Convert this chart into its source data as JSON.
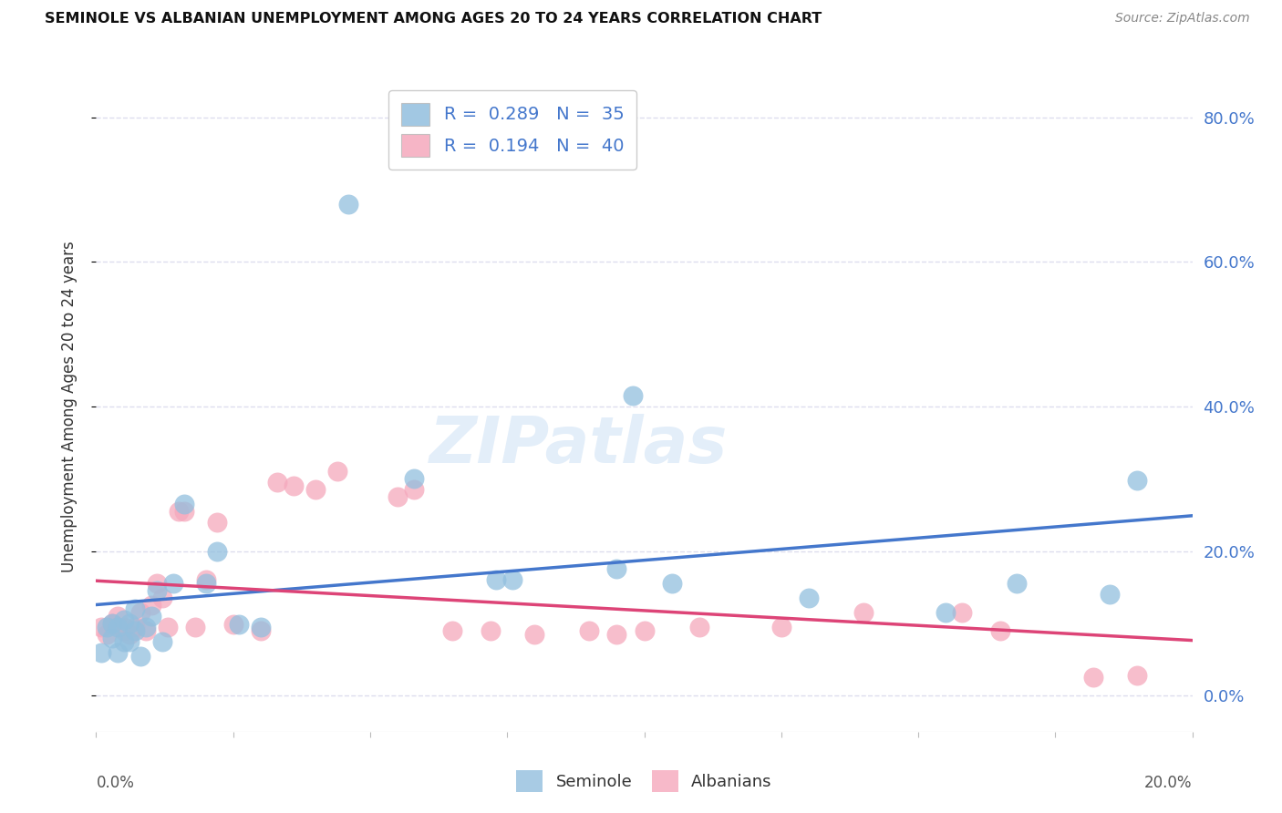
{
  "title": "SEMINOLE VS ALBANIAN UNEMPLOYMENT AMONG AGES 20 TO 24 YEARS CORRELATION CHART",
  "source": "Source: ZipAtlas.com",
  "ylabel": "Unemployment Among Ages 20 to 24 years",
  "xlim": [
    0.0,
    0.2
  ],
  "ylim": [
    -0.05,
    0.85
  ],
  "yticks": [
    0.0,
    0.2,
    0.4,
    0.6,
    0.8
  ],
  "ytick_labels": [
    "0.0%",
    "20.0%",
    "40.0%",
    "60.0%",
    "80.0%"
  ],
  "xticks": [
    0.0,
    0.025,
    0.05,
    0.075,
    0.1,
    0.125,
    0.15,
    0.175,
    0.2
  ],
  "seminole_color": "#92bfde",
  "albanian_color": "#f5a8bc",
  "seminole_line_color": "#4477cc",
  "albanian_line_color": "#dd4477",
  "legend_R_seminole": "0.289",
  "legend_N_seminole": "35",
  "legend_R_albanian": "0.194",
  "legend_N_albanian": "40",
  "watermark_text": "ZIPatlas",
  "background_color": "#ffffff",
  "grid_color": "#ddddee",
  "seminole_x": [
    0.001,
    0.002,
    0.003,
    0.003,
    0.004,
    0.004,
    0.005,
    0.005,
    0.006,
    0.006,
    0.007,
    0.007,
    0.008,
    0.009,
    0.01,
    0.011,
    0.012,
    0.014,
    0.016,
    0.02,
    0.022,
    0.026,
    0.03,
    0.046,
    0.058,
    0.073,
    0.076,
    0.095,
    0.098,
    0.105,
    0.13,
    0.155,
    0.168,
    0.185,
    0.19
  ],
  "seminole_y": [
    0.06,
    0.095,
    0.08,
    0.1,
    0.095,
    0.06,
    0.105,
    0.075,
    0.1,
    0.075,
    0.09,
    0.12,
    0.055,
    0.095,
    0.11,
    0.145,
    0.075,
    0.155,
    0.265,
    0.155,
    0.2,
    0.098,
    0.095,
    0.68,
    0.3,
    0.16,
    0.16,
    0.175,
    0.415,
    0.155,
    0.135,
    0.115,
    0.155,
    0.14,
    0.298
  ],
  "albanian_x": [
    0.001,
    0.002,
    0.003,
    0.004,
    0.005,
    0.005,
    0.006,
    0.007,
    0.008,
    0.009,
    0.01,
    0.011,
    0.012,
    0.013,
    0.015,
    0.016,
    0.018,
    0.02,
    0.022,
    0.025,
    0.03,
    0.033,
    0.036,
    0.04,
    0.044,
    0.055,
    0.058,
    0.065,
    0.072,
    0.08,
    0.09,
    0.095,
    0.1,
    0.11,
    0.125,
    0.14,
    0.158,
    0.165,
    0.182,
    0.19
  ],
  "albanian_y": [
    0.095,
    0.085,
    0.1,
    0.11,
    0.09,
    0.095,
    0.085,
    0.095,
    0.115,
    0.09,
    0.125,
    0.155,
    0.135,
    0.095,
    0.255,
    0.255,
    0.095,
    0.16,
    0.24,
    0.098,
    0.09,
    0.295,
    0.29,
    0.285,
    0.31,
    0.275,
    0.285,
    0.09,
    0.09,
    0.085,
    0.09,
    0.085,
    0.09,
    0.095,
    0.095,
    0.115,
    0.115,
    0.09,
    0.025,
    0.028
  ]
}
